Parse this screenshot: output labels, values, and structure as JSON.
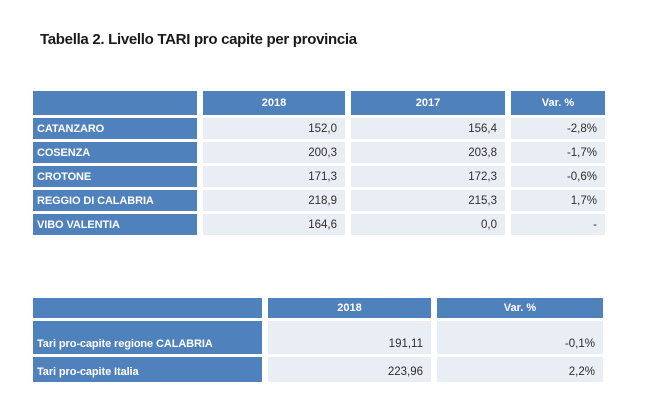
{
  "page": {
    "title": "Tabella 2. Livello TARI pro capite per provincia"
  },
  "colors": {
    "header_blue": "#4f81bd",
    "cell_light": "#e9edf4"
  },
  "tables": {
    "provinces": {
      "headers": [
        "",
        "2018",
        "2017",
        "Var. %"
      ],
      "rows": [
        [
          "CATANZARO",
          "152,0",
          "156,4",
          "-2,8%"
        ],
        [
          "COSENZA",
          "200,3",
          "203,8",
          "-1,7%"
        ],
        [
          "CROTONE",
          "171,3",
          "172,3",
          "-0,6%"
        ],
        [
          "REGGIO DI CALABRIA",
          "218,9",
          "215,3",
          "1,7%"
        ],
        [
          "VIBO VALENTIA",
          "164,6",
          "0,0",
          "-"
        ]
      ]
    },
    "summary": {
      "headers": [
        "",
        "2018",
        "Var. %"
      ],
      "rows": [
        [
          "Tari pro-capite regione CALABRIA",
          "191,11",
          "-0,1%"
        ],
        [
          "Tari pro-capite Italia",
          "223,96",
          "2,2%"
        ]
      ]
    }
  }
}
